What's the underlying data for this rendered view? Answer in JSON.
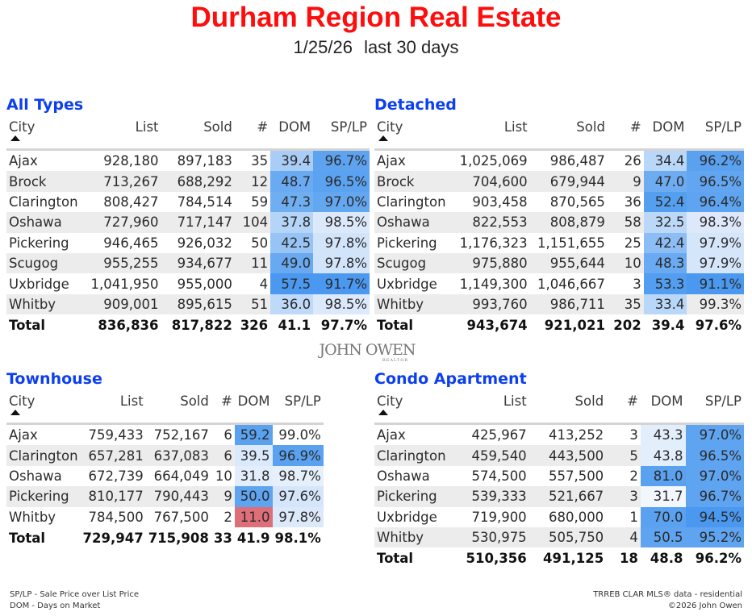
{
  "header": {
    "title": "Durham Region Real Estate",
    "date": "1/25/26",
    "period": "last 30 days"
  },
  "columns": [
    "City",
    "List",
    "Sold",
    "#",
    "DOM",
    "SP/LP"
  ],
  "logo": {
    "name": "JOHN OWEN",
    "sub": "REALTOR"
  },
  "footer": {
    "legend": [
      "SP/LP - Sale Price over List Price",
      "DOM - Days on Market"
    ],
    "source": [
      "TRREB CLAR MLS® data - residential",
      "©2026 John Owen"
    ]
  },
  "tables": [
    {
      "title": "All Types",
      "rows": [
        {
          "city": "Ajax",
          "list": "928,180",
          "sold": "897,183",
          "n": "35",
          "dom": "39.4",
          "splp": "96.7%",
          "dom_bg": "#a9cdf6",
          "splp_bg": "#5da3f0"
        },
        {
          "city": "Brock",
          "list": "713,267",
          "sold": "688,292",
          "n": "12",
          "dom": "48.7",
          "splp": "96.5%",
          "dom_bg": "#6aaaf2",
          "splp_bg": "#5ba2f0"
        },
        {
          "city": "Clarington",
          "list": "808,427",
          "sold": "784,514",
          "n": "59",
          "dom": "47.3",
          "splp": "97.0%",
          "dom_bg": "#70aef2",
          "splp_bg": "#64a7f1"
        },
        {
          "city": "Oshawa",
          "list": "727,960",
          "sold": "717,147",
          "n": "104",
          "dom": "37.8",
          "splp": "98.5%",
          "dom_bg": "#b5d5f8",
          "splp_bg": "#dce9fb"
        },
        {
          "city": "Pickering",
          "list": "946,465",
          "sold": "926,032",
          "n": "50",
          "dom": "42.5",
          "splp": "97.8%",
          "dom_bg": "#98c4f5",
          "splp_bg": "#d2e4fa"
        },
        {
          "city": "Scugog",
          "list": "955,255",
          "sold": "934,677",
          "n": "11",
          "dom": "49.0",
          "splp": "97.8%",
          "dom_bg": "#68a9f1",
          "splp_bg": "#d2e4fa"
        },
        {
          "city": "Uxbridge",
          "list": "1,041,950",
          "sold": "955,000",
          "n": "4",
          "dom": "57.5",
          "splp": "91.7%",
          "dom_bg": "#4a98ef",
          "splp_bg": "#4a98ef"
        },
        {
          "city": "Whitby",
          "list": "909,001",
          "sold": "895,615",
          "n": "51",
          "dom": "36.0",
          "splp": "98.5%",
          "dom_bg": "#bfdaf8",
          "splp_bg": "#dce9fb"
        }
      ],
      "total": {
        "city": "Total",
        "list": "836,836",
        "sold": "817,822",
        "n": "326",
        "dom": "41.1",
        "splp": "97.7%"
      }
    },
    {
      "title": "Detached",
      "rows": [
        {
          "city": "Ajax",
          "list": "1,025,069",
          "sold": "986,487",
          "n": "26",
          "dom": "34.4",
          "splp": "96.2%",
          "dom_bg": "#b9d7f8",
          "splp_bg": "#5aa1f0"
        },
        {
          "city": "Brock",
          "list": "704,600",
          "sold": "679,944",
          "n": "9",
          "dom": "47.0",
          "splp": "96.5%",
          "dom_bg": "#6eacf2",
          "splp_bg": "#62a6f1"
        },
        {
          "city": "Clarington",
          "list": "903,458",
          "sold": "870,565",
          "n": "36",
          "dom": "52.4",
          "splp": "96.4%",
          "dom_bg": "#559ff0",
          "splp_bg": "#5fa4f0"
        },
        {
          "city": "Oshawa",
          "list": "822,553",
          "sold": "808,879",
          "n": "58",
          "dom": "32.5",
          "splp": "98.3%",
          "dom_bg": "#bcd8f8",
          "splp_bg": "#dde9fb"
        },
        {
          "city": "Pickering",
          "list": "1,176,323",
          "sold": "1,151,655",
          "n": "25",
          "dom": "42.4",
          "splp": "97.9%",
          "dom_bg": "#8cbdf4",
          "splp_bg": "#d6e6fa"
        },
        {
          "city": "Scugog",
          "list": "975,880",
          "sold": "955,644",
          "n": "10",
          "dom": "48.3",
          "splp": "97.9%",
          "dom_bg": "#6aaaf2",
          "splp_bg": "#d6e6fa"
        },
        {
          "city": "Uxbridge",
          "list": "1,149,300",
          "sold": "1,046,667",
          "n": "3",
          "dom": "53.3",
          "splp": "91.1%",
          "dom_bg": "#529ef0",
          "splp_bg": "#4a98ef"
        },
        {
          "city": "Whitby",
          "list": "993,760",
          "sold": "986,711",
          "n": "35",
          "dom": "33.4",
          "splp": "99.3%",
          "dom_bg": "#b9d7f8",
          "splp_bg": "#ececec"
        }
      ],
      "total": {
        "city": "Total",
        "list": "943,674",
        "sold": "921,021",
        "n": "202",
        "dom": "39.4",
        "splp": "97.6%"
      }
    },
    {
      "title": "Townhouse",
      "rows": [
        {
          "city": "Ajax",
          "list": "759,433",
          "sold": "752,167",
          "n": "6",
          "dom": "59.2",
          "splp": "99.0%",
          "dom_bg": "#5aa2f0",
          "splp_bg": "#ffffff"
        },
        {
          "city": "Clarington",
          "list": "657,281",
          "sold": "637,083",
          "n": "6",
          "dom": "39.5",
          "splp": "96.9%",
          "dom_bg": "#dae9fb",
          "splp_bg": "#5aa2f0"
        },
        {
          "city": "Oshawa",
          "list": "672,739",
          "sold": "664,049",
          "n": "10",
          "dom": "31.8",
          "splp": "98.7%",
          "dom_bg": "#e3eefc",
          "splp_bg": "#e6effc"
        },
        {
          "city": "Pickering",
          "list": "810,177",
          "sold": "790,443",
          "n": "9",
          "dom": "50.0",
          "splp": "97.6%",
          "dom_bg": "#5ea4f0",
          "splp_bg": "#d6e6fa"
        },
        {
          "city": "Whitby",
          "list": "784,500",
          "sold": "767,500",
          "n": "2",
          "dom": "11.0",
          "splp": "97.8%",
          "dom_bg": "#de6e78",
          "splp_bg": "#dce9fb"
        }
      ],
      "total": {
        "city": "Total",
        "list": "729,947",
        "sold": "715,908",
        "n": "33",
        "dom": "41.9",
        "splp": "98.1%"
      }
    },
    {
      "title": "Condo Apartment",
      "rows": [
        {
          "city": "Ajax",
          "list": "425,967",
          "sold": "413,252",
          "n": "3",
          "dom": "43.3",
          "splp": "97.0%",
          "dom_bg": "#e3eefc",
          "splp_bg": "#5ea4f0"
        },
        {
          "city": "Clarington",
          "list": "459,540",
          "sold": "443,500",
          "n": "5",
          "dom": "43.8",
          "splp": "96.5%",
          "dom_bg": "#e3eefc",
          "splp_bg": "#5ea4f0"
        },
        {
          "city": "Oshawa",
          "list": "574,500",
          "sold": "557,500",
          "n": "2",
          "dom": "81.0",
          "splp": "97.0%",
          "dom_bg": "#5aa2f0",
          "splp_bg": "#5ea4f0"
        },
        {
          "city": "Pickering",
          "list": "539,333",
          "sold": "521,667",
          "n": "3",
          "dom": "31.7",
          "splp": "96.7%",
          "dom_bg": "#f2f7fe",
          "splp_bg": "#5ea4f0"
        },
        {
          "city": "Uxbridge",
          "list": "719,900",
          "sold": "680,000",
          "n": "1",
          "dom": "70.0",
          "splp": "94.5%",
          "dom_bg": "#5aa2f0",
          "splp_bg": "#4a98ef"
        },
        {
          "city": "Whitby",
          "list": "530,975",
          "sold": "505,750",
          "n": "4",
          "dom": "50.5",
          "splp": "95.2%",
          "dom_bg": "#5ea4f0",
          "splp_bg": "#5ea4f0"
        }
      ],
      "total": {
        "city": "Total",
        "list": "510,356",
        "sold": "491,125",
        "n": "18",
        "dom": "48.8",
        "splp": "96.2%"
      }
    }
  ]
}
